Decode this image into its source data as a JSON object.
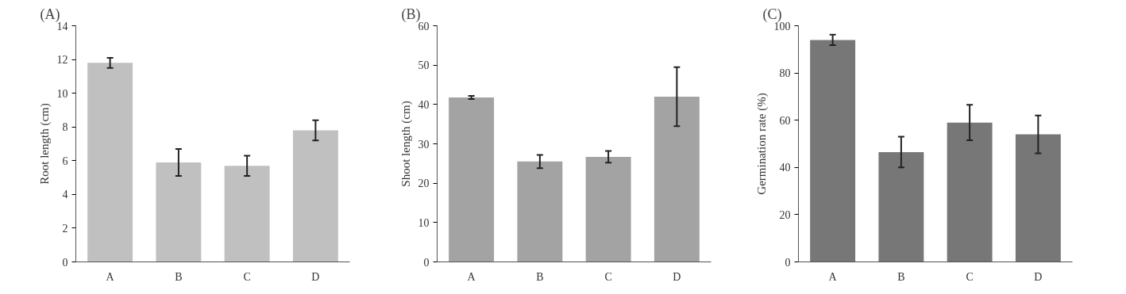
{
  "chart_data": [
    {
      "type": "bar",
      "title": "(A)",
      "ylabel": "Root length (cm)",
      "categories": [
        "A",
        "B",
        "C",
        "D"
      ],
      "values": [
        11.8,
        5.9,
        5.7,
        7.8
      ],
      "errors": [
        0.3,
        0.8,
        0.6,
        0.6
      ],
      "color": "#c0c0c0",
      "ylim": [
        0,
        14
      ],
      "yticks": [
        0,
        2,
        4,
        6,
        8,
        10,
        12,
        14
      ],
      "grid": false
    },
    {
      "type": "bar",
      "title": "(B)",
      "ylabel": "Shoot length (cm)",
      "categories": [
        "A",
        "B",
        "C",
        "D"
      ],
      "values": [
        41.8,
        25.5,
        26.7,
        42
      ],
      "errors": [
        0.4,
        1.7,
        1.5,
        7.5
      ],
      "color": "#a3a3a3",
      "ylim": [
        0,
        60
      ],
      "yticks": [
        0,
        10,
        20,
        30,
        40,
        50,
        60
      ],
      "grid": false
    },
    {
      "type": "bar",
      "title": "(C)",
      "ylabel": "Germination rate (%)",
      "categories": [
        "A",
        "B",
        "C",
        "D"
      ],
      "values": [
        94,
        46.5,
        59,
        54
      ],
      "errors": [
        2.2,
        6.5,
        7.5,
        8
      ],
      "color": "#777777",
      "ylim": [
        0,
        100
      ],
      "yticks": [
        0,
        20,
        40,
        60,
        80,
        100
      ],
      "grid": false
    }
  ]
}
